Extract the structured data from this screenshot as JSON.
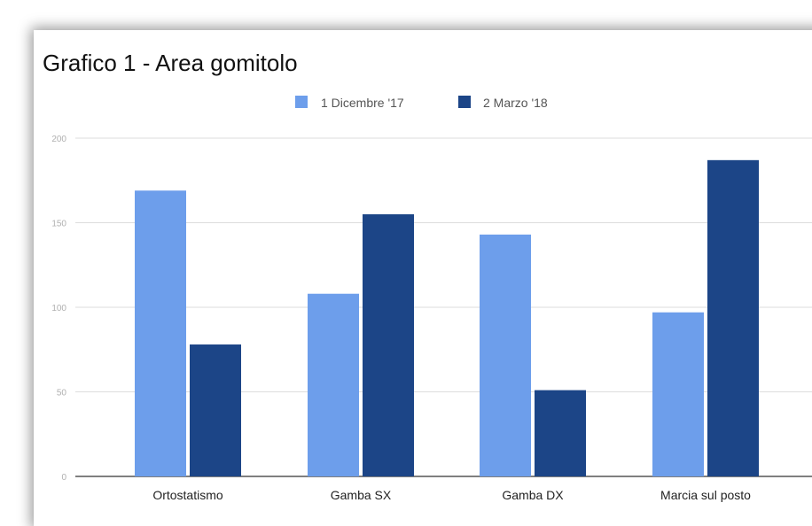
{
  "chart_data": {
    "type": "bar",
    "title": "Grafico 1 - Area gomitolo",
    "categories": [
      "Ortostatismo",
      "Gamba SX",
      "Gamba DX",
      "Marcia sul posto"
    ],
    "series": [
      {
        "name": "1 Dicembre '17",
        "color": "#6d9eeb",
        "values": [
          169,
          108,
          143,
          97
        ]
      },
      {
        "name": "2 Marzo '18",
        "color": "#1c4587",
        "values": [
          78,
          155,
          51,
          187
        ]
      }
    ],
    "ylim": [
      0,
      200
    ],
    "yticks": [
      "0",
      "50",
      "100",
      "150",
      "200"
    ],
    "xlabel": "",
    "ylabel": "",
    "grid": true,
    "legend_position": "top-center"
  }
}
